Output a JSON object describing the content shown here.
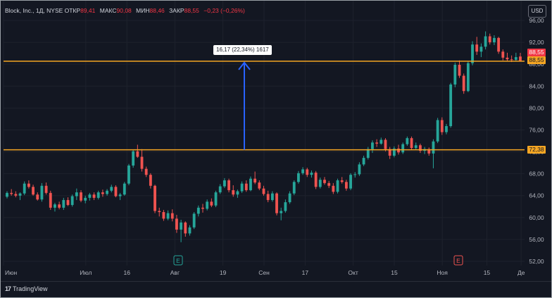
{
  "header": {
    "symbol": "Block, Inc., 1Д, NYSE",
    "open_label": "ОТКР",
    "open_value": "89,41",
    "high_label": "МАКС",
    "high_value": "90,08",
    "low_label": "МИН",
    "low_value": "88,46",
    "close_label": "ЗАКР",
    "close_value": "88,55",
    "change": "−0,23 (−0,26%)"
  },
  "currency_button": "USD",
  "measure_label": "16,17 (22,34%) 1617",
  "price_tags": {
    "upper": "88,55",
    "current": "88,55",
    "lower": "72,38"
  },
  "footer": {
    "brand": "TradingView"
  },
  "colors": {
    "up": "#26a69a",
    "down": "#ef5350",
    "level": "#f5a623",
    "arrow": "#2962ff",
    "background": "#131722"
  },
  "chart_data": {
    "type": "candlestick",
    "title": "Block, Inc., 1Д, NYSE",
    "ylim": [
      51,
      96
    ],
    "y_ticks": [
      "52,00",
      "56,00",
      "60,00",
      "64,00",
      "68,00",
      "72,00",
      "76,00",
      "80,00",
      "84,00",
      "88,00",
      "92,00",
      "96,00"
    ],
    "x_ticks": [
      "Июн",
      "Июл",
      "16",
      "Авг",
      "19",
      "Сен",
      "17",
      "Окт",
      "15",
      "Ноя",
      "15",
      "Де"
    ],
    "horizontal_levels": [
      88.55,
      72.38
    ],
    "measure": {
      "from": 72.38,
      "to": 88.55,
      "change": 16.17,
      "percent": 22.34,
      "bars": 1617
    },
    "markers": [
      {
        "label": "E",
        "near": "Авг",
        "type": "earnings"
      },
      {
        "label": "E",
        "near": "Ноя",
        "type": "earnings"
      }
    ],
    "candles": [
      [
        63.8,
        64.8,
        63.5,
        64.5
      ],
      [
        64.5,
        65.2,
        64.0,
        64.3
      ],
      [
        64.3,
        64.8,
        63.7,
        64.0
      ],
      [
        64.0,
        64.6,
        63.2,
        64.4
      ],
      [
        64.4,
        66.6,
        64.1,
        66.2
      ],
      [
        66.2,
        66.8,
        65.3,
        65.6
      ],
      [
        65.6,
        66.0,
        64.0,
        64.2
      ],
      [
        64.2,
        64.6,
        63.1,
        63.3
      ],
      [
        63.3,
        66.3,
        62.9,
        65.8
      ],
      [
        65.8,
        66.4,
        64.2,
        64.5
      ],
      [
        64.5,
        64.9,
        61.4,
        61.8
      ],
      [
        61.8,
        62.7,
        61.1,
        62.4
      ],
      [
        62.4,
        62.9,
        61.5,
        61.8
      ],
      [
        61.8,
        63.6,
        61.4,
        63.2
      ],
      [
        63.2,
        63.7,
        62.1,
        62.3
      ],
      [
        62.3,
        64.2,
        62.0,
        63.9
      ],
      [
        63.9,
        65.3,
        63.2,
        64.6
      ],
      [
        64.6,
        65.0,
        62.8,
        63.1
      ],
      [
        63.1,
        64.0,
        62.6,
        63.6
      ],
      [
        63.6,
        64.5,
        63.1,
        64.2
      ],
      [
        64.2,
        64.6,
        63.2,
        63.6
      ],
      [
        63.6,
        64.9,
        63.3,
        64.6
      ],
      [
        64.6,
        65.1,
        63.8,
        64.3
      ],
      [
        64.3,
        65.2,
        64.0,
        64.9
      ],
      [
        64.9,
        66.0,
        64.6,
        65.6
      ],
      [
        65.6,
        65.9,
        63.7,
        63.9
      ],
      [
        63.9,
        64.5,
        63.2,
        64.2
      ],
      [
        64.2,
        66.5,
        64.0,
        66.2
      ],
      [
        66.2,
        69.8,
        65.9,
        69.5
      ],
      [
        69.5,
        72.4,
        69.1,
        72.1
      ],
      [
        72.1,
        73.3,
        70.9,
        71.1
      ],
      [
        71.1,
        72.5,
        68.4,
        68.9
      ],
      [
        68.9,
        69.3,
        67.4,
        67.8
      ],
      [
        67.8,
        68.1,
        65.3,
        65.8
      ],
      [
        65.8,
        66.0,
        60.8,
        61.2
      ],
      [
        61.2,
        61.8,
        60.2,
        61.0
      ],
      [
        61.0,
        61.4,
        59.4,
        59.8
      ],
      [
        59.8,
        61.3,
        59.5,
        60.8
      ],
      [
        60.8,
        61.5,
        59.3,
        59.8
      ],
      [
        59.8,
        60.5,
        57.2,
        57.8
      ],
      [
        57.8,
        59.6,
        55.5,
        59.1
      ],
      [
        59.1,
        59.3,
        56.5,
        57.1
      ],
      [
        57.1,
        58.6,
        56.7,
        58.2
      ],
      [
        58.2,
        61.0,
        57.9,
        60.7
      ],
      [
        60.7,
        62.2,
        60.2,
        61.8
      ],
      [
        61.8,
        62.5,
        60.9,
        61.6
      ],
      [
        61.6,
        63.3,
        61.3,
        62.9
      ],
      [
        62.9,
        63.5,
        61.9,
        62.2
      ],
      [
        62.2,
        64.9,
        61.9,
        64.6
      ],
      [
        64.6,
        66.1,
        64.3,
        65.7
      ],
      [
        65.7,
        67.2,
        65.4,
        66.8
      ],
      [
        66.8,
        67.1,
        64.6,
        65.0
      ],
      [
        65.0,
        65.9,
        63.8,
        64.2
      ],
      [
        64.2,
        65.1,
        63.6,
        64.8
      ],
      [
        64.8,
        66.6,
        64.5,
        66.2
      ],
      [
        66.2,
        66.8,
        64.7,
        65.0
      ],
      [
        65.0,
        67.5,
        64.8,
        67.1
      ],
      [
        67.1,
        68.4,
        66.1,
        66.4
      ],
      [
        66.4,
        66.8,
        65.0,
        65.3
      ],
      [
        65.3,
        65.8,
        64.0,
        64.3
      ],
      [
        64.3,
        64.9,
        62.8,
        63.2
      ],
      [
        63.2,
        64.8,
        62.9,
        64.4
      ],
      [
        64.4,
        64.6,
        60.4,
        60.8
      ],
      [
        60.8,
        61.8,
        59.5,
        61.2
      ],
      [
        61.2,
        63.3,
        60.9,
        62.8
      ],
      [
        62.8,
        64.8,
        62.5,
        64.4
      ],
      [
        64.4,
        66.8,
        64.1,
        66.5
      ],
      [
        66.5,
        68.5,
        66.2,
        68.1
      ],
      [
        68.1,
        69.2,
        67.8,
        68.8
      ],
      [
        68.8,
        69.1,
        67.4,
        67.8
      ],
      [
        67.8,
        68.6,
        67.3,
        68.2
      ],
      [
        68.2,
        68.5,
        65.2,
        65.6
      ],
      [
        65.6,
        67.3,
        65.3,
        66.9
      ],
      [
        66.9,
        67.4,
        66.0,
        66.3
      ],
      [
        66.3,
        66.7,
        65.4,
        65.8
      ],
      [
        65.8,
        66.3,
        64.3,
        64.7
      ],
      [
        64.7,
        67.1,
        64.4,
        66.8
      ],
      [
        66.8,
        67.4,
        66.2,
        66.5
      ],
      [
        66.5,
        66.9,
        64.9,
        65.3
      ],
      [
        65.3,
        68.1,
        65.0,
        67.8
      ],
      [
        67.8,
        68.3,
        67.3,
        67.9
      ],
      [
        67.9,
        70.1,
        67.6,
        69.7
      ],
      [
        69.7,
        71.3,
        69.4,
        70.9
      ],
      [
        70.9,
        72.9,
        70.6,
        72.5
      ],
      [
        72.5,
        74.1,
        71.8,
        73.7
      ],
      [
        73.7,
        74.3,
        72.9,
        73.5
      ],
      [
        73.5,
        74.6,
        73.3,
        74.2
      ],
      [
        74.2,
        74.5,
        72.1,
        72.5
      ],
      [
        72.5,
        72.9,
        70.7,
        71.3
      ],
      [
        71.3,
        73.0,
        71.0,
        72.6
      ],
      [
        72.6,
        73.3,
        71.5,
        71.9
      ],
      [
        71.9,
        73.7,
        71.6,
        73.4
      ],
      [
        73.4,
        74.8,
        73.1,
        74.5
      ],
      [
        74.5,
        74.8,
        72.3,
        72.7
      ],
      [
        72.7,
        73.7,
        72.4,
        73.2
      ],
      [
        73.2,
        73.5,
        71.8,
        72.2
      ],
      [
        72.2,
        72.9,
        71.6,
        72.5
      ],
      [
        72.5,
        72.8,
        71.3,
        71.7
      ],
      [
        71.7,
        74.3,
        69.0,
        73.9
      ],
      [
        73.9,
        78.2,
        73.6,
        77.8
      ],
      [
        77.8,
        78.3,
        75.1,
        75.6
      ],
      [
        75.6,
        77.1,
        75.2,
        76.7
      ],
      [
        76.7,
        84.6,
        76.4,
        84.3
      ],
      [
        84.3,
        88.3,
        83.8,
        87.9
      ],
      [
        87.9,
        88.7,
        85.5,
        85.9
      ],
      [
        85.9,
        86.3,
        82.6,
        83.1
      ],
      [
        83.1,
        88.6,
        82.9,
        88.2
      ],
      [
        88.2,
        92.2,
        87.8,
        91.6
      ],
      [
        91.6,
        93.0,
        89.7,
        90.3
      ],
      [
        90.3,
        91.8,
        89.3,
        91.2
      ],
      [
        91.2,
        94.0,
        90.7,
        93.1
      ],
      [
        93.1,
        93.6,
        91.6,
        92.0
      ],
      [
        92.0,
        93.3,
        91.5,
        92.8
      ],
      [
        92.8,
        93.0,
        89.9,
        90.3
      ],
      [
        90.3,
        90.7,
        88.7,
        89.2
      ],
      [
        89.2,
        90.1,
        88.5,
        88.9
      ],
      [
        88.9,
        89.6,
        88.4,
        88.8
      ],
      [
        88.8,
        90.1,
        88.5,
        89.3
      ],
      [
        89.41,
        90.08,
        88.46,
        88.55
      ]
    ]
  }
}
